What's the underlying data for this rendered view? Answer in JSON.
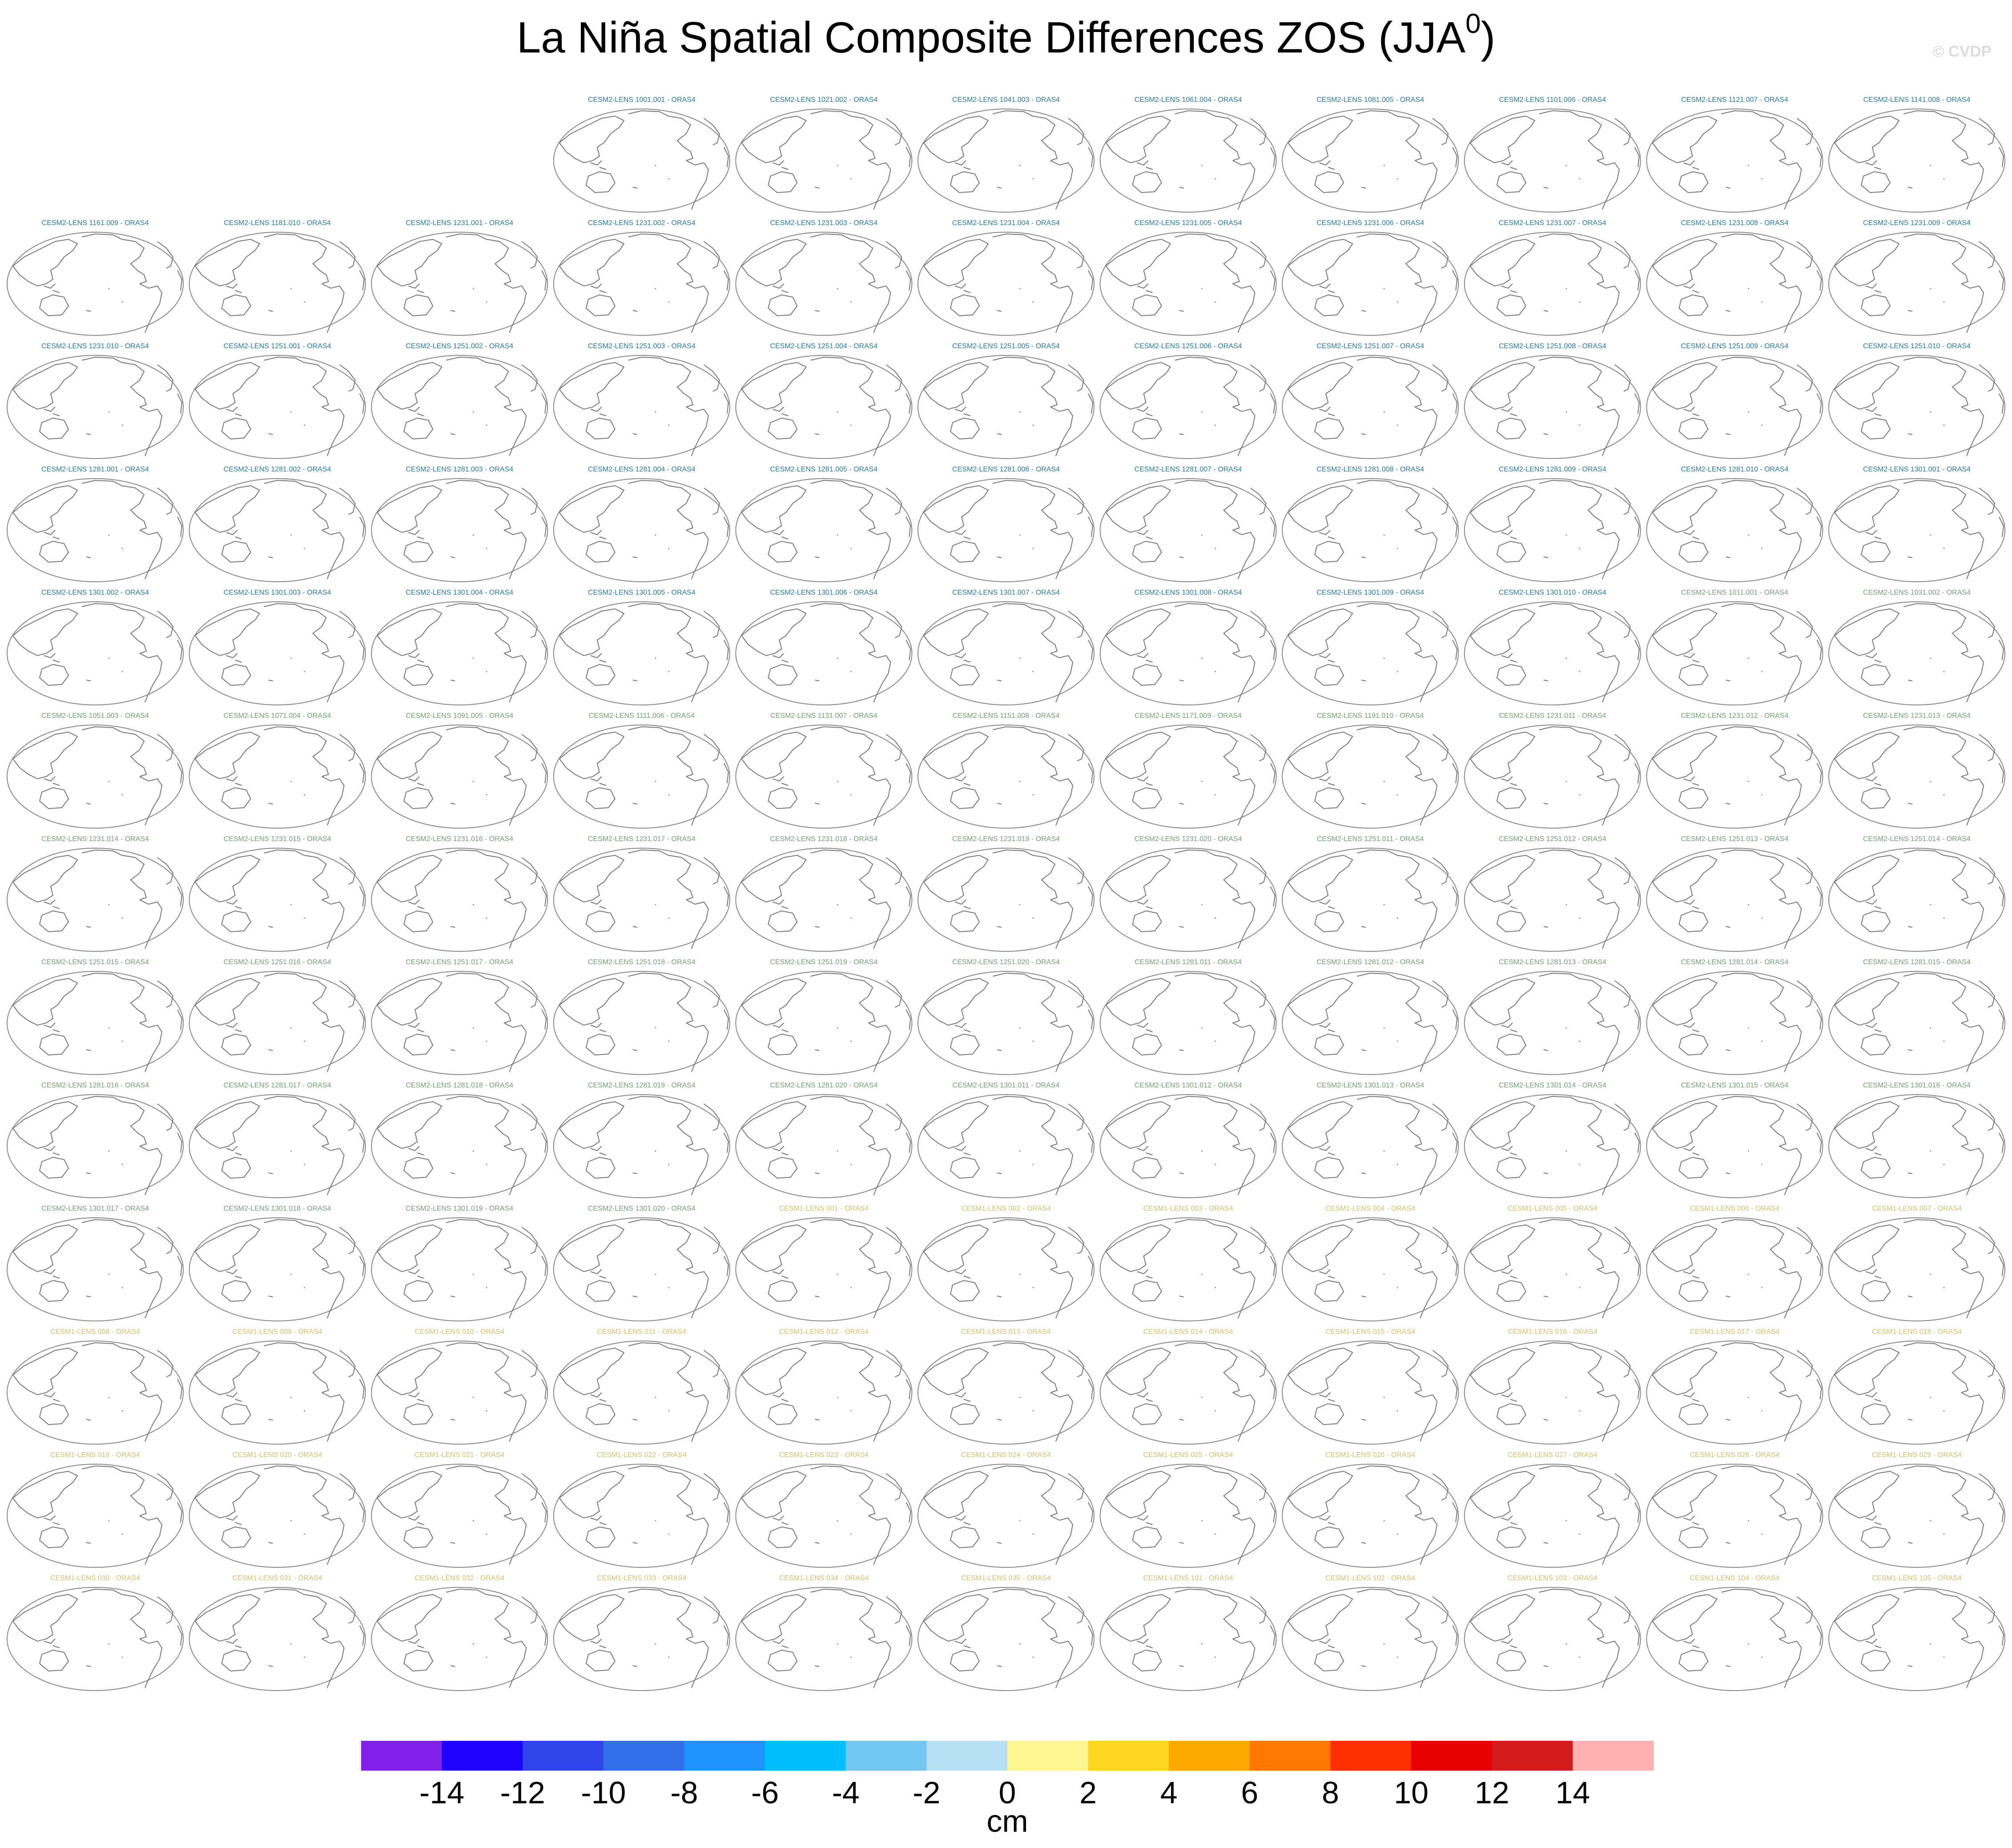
{
  "title": "La Niña Spatial Composite Differences ZOS (JJA",
  "title_superscript": "0",
  "title_end": ")",
  "watermark": "© CVDP",
  "panel_groups": [
    {
      "color": "#2b7a9e",
      "labels": [
        "CESM2-LENS 1001.001 - ORAS4",
        "CESM2-LENS 1021.002 - ORAS4",
        "CESM2-LENS 1041.003 - ORAS4",
        "CESM2-LENS 1061.004 - ORAS4",
        "CESM2-LENS 1081.005 - ORAS4",
        "CESM2-LENS 1101.006 - ORAS4",
        "CESM2-LENS 1121.007 - ORAS4",
        "CESM2-LENS 1141.008 - ORAS4",
        "CESM2-LENS 1161.009 - ORAS4",
        "CESM2-LENS 1181.010 - ORAS4",
        "CESM2-LENS 1231.001 - ORAS4",
        "CESM2-LENS 1231.002 - ORAS4",
        "CESM2-LENS 1231.003 - ORAS4",
        "CESM2-LENS 1231.004 - ORAS4",
        "CESM2-LENS 1231.005 - ORAS4",
        "CESM2-LENS 1231.006 - ORAS4",
        "CESM2-LENS 1231.007 - ORAS4",
        "CESM2-LENS 1231.008 - ORAS4",
        "CESM2-LENS 1231.009 - ORAS4",
        "CESM2-LENS 1231.010 - ORAS4",
        "CESM2-LENS 1251.001 - ORAS4",
        "CESM2-LENS 1251.002 - ORAS4",
        "CESM2-LENS 1251.003 - ORAS4",
        "CESM2-LENS 1251.004 - ORAS4",
        "CESM2-LENS 1251.005 - ORAS4",
        "CESM2-LENS 1251.006 - ORAS4",
        "CESM2-LENS 1251.007 - ORAS4",
        "CESM2-LENS 1251.008 - ORAS4",
        "CESM2-LENS 1251.009 - ORAS4",
        "CESM2-LENS 1251.010 - ORAS4",
        "CESM2-LENS 1281.001 - ORAS4",
        "CESM2-LENS 1281.002 - ORAS4",
        "CESM2-LENS 1281.003 - ORAS4",
        "CESM2-LENS 1281.004 - ORAS4",
        "CESM2-LENS 1281.005 - ORAS4",
        "CESM2-LENS 1281.006 - ORAS4",
        "CESM2-LENS 1281.007 - ORAS4",
        "CESM2-LENS 1281.008 - ORAS4",
        "CESM2-LENS 1281.009 - ORAS4",
        "CESM2-LENS 1281.010 - ORAS4",
        "CESM2-LENS 1301.001 - ORAS4",
        "CESM2-LENS 1301.002 - ORAS4",
        "CESM2-LENS 1301.003 - ORAS4",
        "CESM2-LENS 1301.004 - ORAS4",
        "CESM2-LENS 1301.005 - ORAS4",
        "CESM2-LENS 1301.006 - ORAS4",
        "CESM2-LENS 1301.007 - ORAS4",
        "CESM2-LENS 1301.008 - ORAS4",
        "CESM2-LENS 1301.009 - ORAS4",
        "CESM2-LENS 1301.010 - ORAS4"
      ]
    },
    {
      "color": "#74a074",
      "labels": [
        "CESM2-LENS 1011.001 - ORAS4",
        "CESM2-LENS 1031.002 - ORAS4",
        "CESM2-LENS 1051.003 - ORAS4",
        "CESM2-LENS 1071.004 - ORAS4",
        "CESM2-LENS 1091.005 - ORAS4",
        "CESM2-LENS 1111.006 - ORAS4",
        "CESM2-LENS 1131.007 - ORAS4",
        "CESM2-LENS 1151.008 - ORAS4",
        "CESM2-LENS 1171.009 - ORAS4",
        "CESM2-LENS 1191.010 - ORAS4",
        "CESM2-LENS 1231.011 - ORAS4",
        "CESM2-LENS 1231.012 - ORAS4",
        "CESM2-LENS 1231.013 - ORAS4",
        "CESM2-LENS 1231.014 - ORAS4",
        "CESM2-LENS 1231.015 - ORAS4",
        "CESM2-LENS 1231.016 - ORAS4",
        "CESM2-LENS 1231.017 - ORAS4",
        "CESM2-LENS 1231.018 - ORAS4",
        "CESM2-LENS 1231.019 - ORAS4",
        "CESM2-LENS 1231.020 - ORAS4",
        "CESM2-LENS 1251.011 - ORAS4",
        "CESM2-LENS 1251.012 - ORAS4",
        "CESM2-LENS 1251.013 - ORAS4",
        "CESM2-LENS 1251.014 - ORAS4",
        "CESM2-LENS 1251.015 - ORAS4",
        "CESM2-LENS 1251.016 - ORAS4",
        "CESM2-LENS 1251.017 - ORAS4",
        "CESM2-LENS 1251.018 - ORAS4",
        "CESM2-LENS 1251.019 - ORAS4",
        "CESM2-LENS 1251.020 - ORAS4",
        "CESM2-LENS 1281.011 - ORAS4",
        "CESM2-LENS 1281.012 - ORAS4",
        "CESM2-LENS 1281.013 - ORAS4",
        "CESM2-LENS 1281.014 - ORAS4",
        "CESM2-LENS 1281.015 - ORAS4",
        "CESM2-LENS 1281.016 - ORAS4",
        "CESM2-LENS 1281.017 - ORAS4",
        "CESM2-LENS 1281.018 - ORAS4",
        "CESM2-LENS 1281.019 - ORAS4",
        "CESM2-LENS 1281.020 - ORAS4",
        "CESM2-LENS 1301.011 - ORAS4",
        "CESM2-LENS 1301.012 - ORAS4",
        "CESM2-LENS 1301.013 - ORAS4",
        "CESM2-LENS 1301.014 - ORAS4",
        "CESM2-LENS 1301.015 - ORAS4",
        "CESM2-LENS 1301.016 - ORAS4",
        "CESM2-LENS 1301.017 - ORAS4",
        "CESM2-LENS 1301.018 - ORAS4",
        "CESM2-LENS 1301.019 - ORAS4",
        "CESM2-LENS 1301.020 - ORAS4"
      ]
    },
    {
      "color": "#d4c070",
      "labels": [
        "CESM1-LENS 001 - ORAS4",
        "CESM1-LENS 002 - ORAS4",
        "CESM1-LENS 003 - ORAS4",
        "CESM1-LENS 004 - ORAS4",
        "CESM1-LENS 005 - ORAS4",
        "CESM1-LENS 006 - ORAS4",
        "CESM1-LENS 007 - ORAS4",
        "CESM1-LENS 008 - ORAS4",
        "CESM1-LENS 009 - ORAS4",
        "CESM1-LENS 010 - ORAS4",
        "CESM1-LENS 011 - ORAS4",
        "CESM1-LENS 012 - ORAS4",
        "CESM1-LENS 013 - ORAS4",
        "CESM1-LENS 014 - ORAS4",
        "CESM1-LENS 015 - ORAS4",
        "CESM1-LENS 016 - ORAS4",
        "CESM1-LENS 017 - ORAS4",
        "CESM1-LENS 018 - ORAS4",
        "CESM1-LENS 019 - ORAS4",
        "CESM1-LENS 020 - ORAS4",
        "CESM1-LENS 021 - ORAS4",
        "CESM1-LENS 022 - ORAS4",
        "CESM1-LENS 023 - ORAS4",
        "CESM1-LENS 024 - ORAS4",
        "CESM1-LENS 025 - ORAS4",
        "CESM1-LENS 026 - ORAS4",
        "CESM1-LENS 027 - ORAS4",
        "CESM1-LENS 028 - ORAS4",
        "CESM1-LENS 029 - ORAS4",
        "CESM1-LENS 030 - ORAS4",
        "CESM1-LENS 031 - ORAS4",
        "CESM1-LENS 032 - ORAS4",
        "CESM1-LENS 033 - ORAS4",
        "CESM1-LENS 034 - ORAS4",
        "CESM1-LENS 035 - ORAS4",
        "CESM1-LENS 101 - ORAS4",
        "CESM1-LENS 102 - ORAS4",
        "CESM1-LENS 103 - ORAS4",
        "CESM1-LENS 104 - ORAS4",
        "CESM1-LENS 105 - ORAS4"
      ]
    }
  ],
  "colorbar": {
    "colors": [
      "#8020e8",
      "#2000ff",
      "#2c44ea",
      "#3070e8",
      "#2092ff",
      "#00bfff",
      "#72c8f0",
      "#b4e0f2",
      "#fff690",
      "#ffd620",
      "#ffa800",
      "#ff7800",
      "#ff3000",
      "#e80000",
      "#d21c1c",
      "#ffb0b0"
    ],
    "ticks": [
      -14,
      -12,
      -10,
      -8,
      -6,
      -4,
      -2,
      0,
      2,
      4,
      6,
      8,
      10,
      12,
      14
    ],
    "unit": "cm"
  }
}
